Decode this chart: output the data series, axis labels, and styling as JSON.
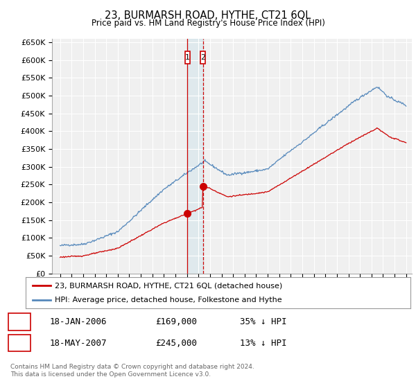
{
  "title": "23, BURMARSH ROAD, HYTHE, CT21 6QL",
  "subtitle": "Price paid vs. HM Land Registry's House Price Index (HPI)",
  "hpi_label": "HPI: Average price, detached house, Folkestone and Hythe",
  "property_label": "23, BURMARSH ROAD, HYTHE, CT21 6QL (detached house)",
  "hpi_color": "#5588bb",
  "property_color": "#cc0000",
  "t1": 2006.05,
  "t2": 2007.38,
  "transaction1_date": "18-JAN-2006",
  "transaction1_price": 169000,
  "transaction1_hpi": "35% ↓ HPI",
  "transaction2_date": "18-MAY-2007",
  "transaction2_price": 245000,
  "transaction2_hpi": "13% ↓ HPI",
  "ylim": [
    0,
    660000
  ],
  "yticks": [
    0,
    50000,
    100000,
    150000,
    200000,
    250000,
    300000,
    350000,
    400000,
    450000,
    500000,
    550000,
    600000,
    650000
  ],
  "xlim_left": 1994.3,
  "xlim_right": 2025.5,
  "footer": "Contains HM Land Registry data © Crown copyright and database right 2024.\nThis data is licensed under the Open Government Licence v3.0.",
  "chart_bg": "#f0f0f0",
  "grid_color": "#ffffff"
}
